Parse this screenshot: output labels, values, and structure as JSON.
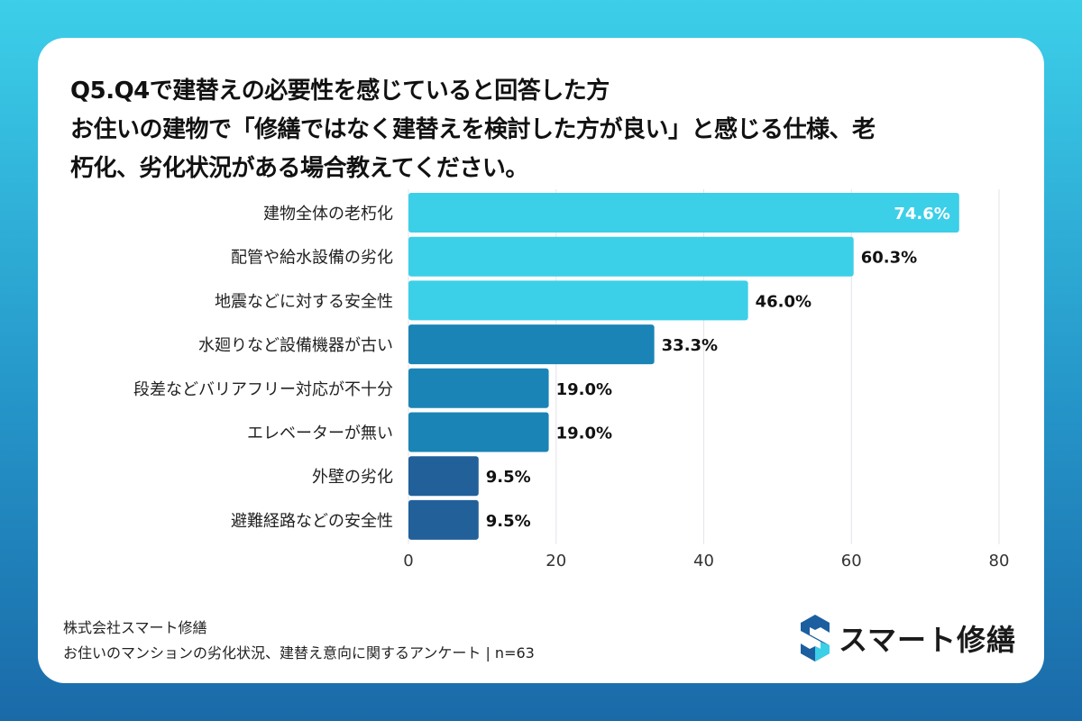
{
  "title_lines": [
    "Q5.Q4で建替えの必要性を感じていると回答した方",
    "お住いの建物で「修繕ではなく建替えを検討した方が良い」と感じる仕様、老",
    "朽化、劣化状況がある場合教えてください。"
  ],
  "chart_data": {
    "type": "bar",
    "orientation": "horizontal",
    "categories": [
      "建物全体の老朽化",
      "配管や給水設備の劣化",
      "地震などに対する安全性",
      "水廻りなど設備機器が古い",
      "段差などバリアフリー対応が不十分",
      "エレベーターが無い",
      "外壁の劣化",
      "避難経路などの安全性"
    ],
    "values": [
      74.6,
      60.3,
      46.0,
      33.3,
      19.0,
      19.0,
      9.5,
      9.5
    ],
    "data_labels": [
      "74.6%",
      "60.3%",
      "46.0%",
      "33.3%",
      "19.0%",
      "19.0%",
      "9.5%",
      "9.5%"
    ],
    "bar_colors": [
      "#3ccfe8",
      "#3ccfe8",
      "#3ccfe8",
      "#1a84b6",
      "#1a84b6",
      "#1a84b6",
      "#22609a",
      "#22609a"
    ],
    "xlim": [
      0,
      80
    ],
    "xticks": [
      0,
      20,
      40,
      60,
      80
    ],
    "grid": true
  },
  "footer": {
    "company": "株式会社スマート修繕",
    "survey": "お住いのマンションの劣化状況、建替え意向に関するアンケート | n=63"
  },
  "logo": {
    "text": "スマート修繕",
    "colors": [
      "#1c5fa0",
      "#3ccfe8"
    ]
  }
}
